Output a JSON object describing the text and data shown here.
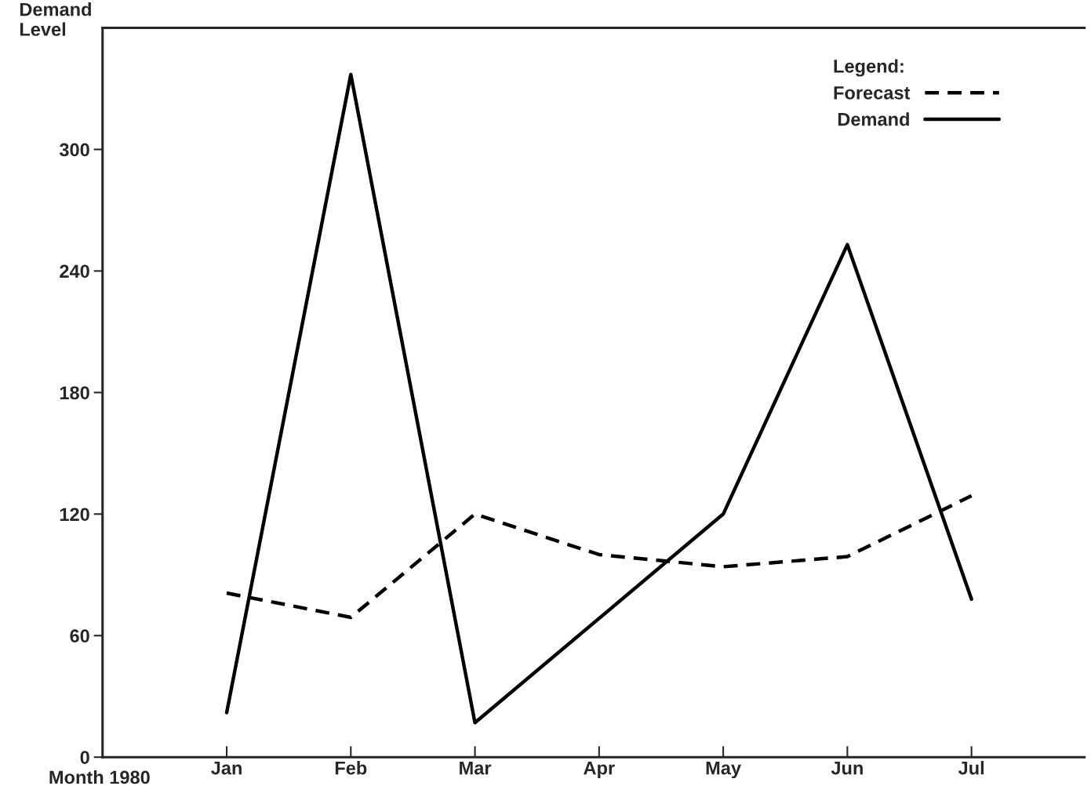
{
  "chart_data": {
    "type": "line",
    "ylabel": "Demand\nLevel",
    "xlabel": "Month 1980",
    "legend_title": "Legend:",
    "categories": [
      "Jan",
      "Feb",
      "Mar",
      "Apr",
      "May",
      "Jun",
      "Jul"
    ],
    "series": [
      {
        "name": "Forecast",
        "color": "#000000",
        "line_style": "dashed",
        "values": [
          81,
          69,
          120,
          100,
          94,
          99,
          129
        ]
      },
      {
        "name": "Demand",
        "color": "#000000",
        "line_style": "solid",
        "values": [
          22,
          337,
          17,
          null,
          120,
          253,
          78
        ]
      }
    ],
    "ylim": [
      0,
      360
    ],
    "yticks": [
      0,
      60,
      120,
      180,
      240,
      300
    ],
    "legend": "top right",
    "grid": false,
    "marker": "none"
  }
}
